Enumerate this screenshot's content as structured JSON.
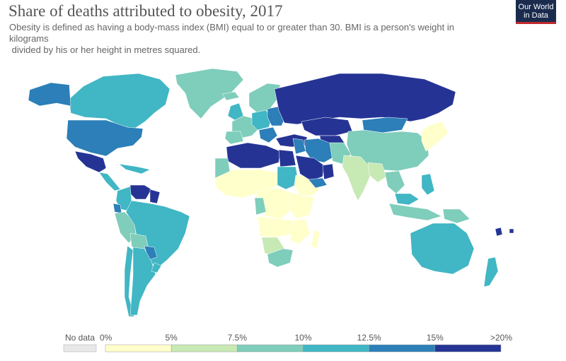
{
  "title": "Share of deaths attributed to obesity, 2017",
  "subtitle_lines": [
    "Obesity is defined as having a body-mass index (BMI) equal to or greater than 30. BMI is a person's weight in",
    "kilograms",
    " divided by his or her height in metres squared."
  ],
  "logo": {
    "line1": "Our World",
    "line2": "in Data",
    "bg": "#1a2b4e",
    "accent": "#c0282d"
  },
  "legend": {
    "nodata_label": "No data",
    "nodata_color": "#e8e8e8",
    "bins": [
      {
        "label": "0%",
        "color": "#ffffcc"
      },
      {
        "label": "5%",
        "color": "#c7e9b4"
      },
      {
        "label": "7.5%",
        "color": "#7fcdbb"
      },
      {
        "label": "10%",
        "color": "#41b6c4"
      },
      {
        "label": "12.5%",
        "color": "#2c7fb8"
      },
      {
        "label": "15%",
        "color": "#253494"
      },
      {
        "label": ">20%",
        "color": ""
      }
    ]
  },
  "regions": [
    {
      "name": "greenland",
      "bin": 2
    },
    {
      "name": "canada",
      "bin": 3
    },
    {
      "name": "alaska",
      "bin": 4
    },
    {
      "name": "usa",
      "bin": 4
    },
    {
      "name": "mexico",
      "bin": 5
    },
    {
      "name": "central-america",
      "bin": 3
    },
    {
      "name": "caribbean",
      "bin": 3
    },
    {
      "name": "venezuela",
      "bin": 5
    },
    {
      "name": "guyana-suriname",
      "bin": 5
    },
    {
      "name": "colombia",
      "bin": 3
    },
    {
      "name": "ecuador",
      "bin": 4
    },
    {
      "name": "peru",
      "bin": 2
    },
    {
      "name": "brazil",
      "bin": 3
    },
    {
      "name": "bolivia",
      "bin": 2
    },
    {
      "name": "paraguay",
      "bin": 4
    },
    {
      "name": "chile",
      "bin": 3
    },
    {
      "name": "argentina",
      "bin": 3
    },
    {
      "name": "uruguay",
      "bin": 3
    },
    {
      "name": "iceland",
      "bin": 2
    },
    {
      "name": "uk-ireland",
      "bin": 3
    },
    {
      "name": "scandinavia",
      "bin": 2
    },
    {
      "name": "western-europe",
      "bin": 2
    },
    {
      "name": "iberia",
      "bin": 2
    },
    {
      "name": "central-europe",
      "bin": 3
    },
    {
      "name": "eastern-europe",
      "bin": 4
    },
    {
      "name": "balkans",
      "bin": 4
    },
    {
      "name": "russia",
      "bin": 5
    },
    {
      "name": "turkey-caucasus",
      "bin": 5
    },
    {
      "name": "kazakhstan",
      "bin": 5
    },
    {
      "name": "central-asia",
      "bin": 5
    },
    {
      "name": "mongolia",
      "bin": 4
    },
    {
      "name": "china",
      "bin": 2
    },
    {
      "name": "korea-japan",
      "bin": 0
    },
    {
      "name": "north-africa",
      "bin": 5
    },
    {
      "name": "egypt",
      "bin": 5
    },
    {
      "name": "western-sahara",
      "bin": 2
    },
    {
      "name": "sahel-west-africa",
      "bin": 0
    },
    {
      "name": "sudan",
      "bin": 3
    },
    {
      "name": "ethiopia-horn",
      "bin": 0
    },
    {
      "name": "central-africa",
      "bin": 0
    },
    {
      "name": "gabon-congo",
      "bin": 2
    },
    {
      "name": "east-africa",
      "bin": 0
    },
    {
      "name": "angola-zambia",
      "bin": 0
    },
    {
      "name": "mozambique-malawi",
      "bin": 0
    },
    {
      "name": "madagascar",
      "bin": 0
    },
    {
      "name": "namibia-botswana",
      "bin": 1
    },
    {
      "name": "south-africa",
      "bin": 2
    },
    {
      "name": "middle-east-levant",
      "bin": 4
    },
    {
      "name": "iraq-iran",
      "bin": 4
    },
    {
      "name": "saudi-arabia",
      "bin": 5
    },
    {
      "name": "yemen",
      "bin": 4
    },
    {
      "name": "oman-uae",
      "bin": 5
    },
    {
      "name": "afghanistan-pakistan",
      "bin": 2
    },
    {
      "name": "india",
      "bin": 1
    },
    {
      "name": "southeast-asia",
      "bin": 1
    },
    {
      "name": "thailand-cambodia",
      "bin": 2
    },
    {
      "name": "malaysia",
      "bin": 3
    },
    {
      "name": "indonesia",
      "bin": 2
    },
    {
      "name": "philippines",
      "bin": 3
    },
    {
      "name": "png",
      "bin": 2
    },
    {
      "name": "australia",
      "bin": 3
    },
    {
      "name": "new-zealand",
      "bin": 3
    },
    {
      "name": "pacific-islands",
      "bin": 5
    }
  ]
}
